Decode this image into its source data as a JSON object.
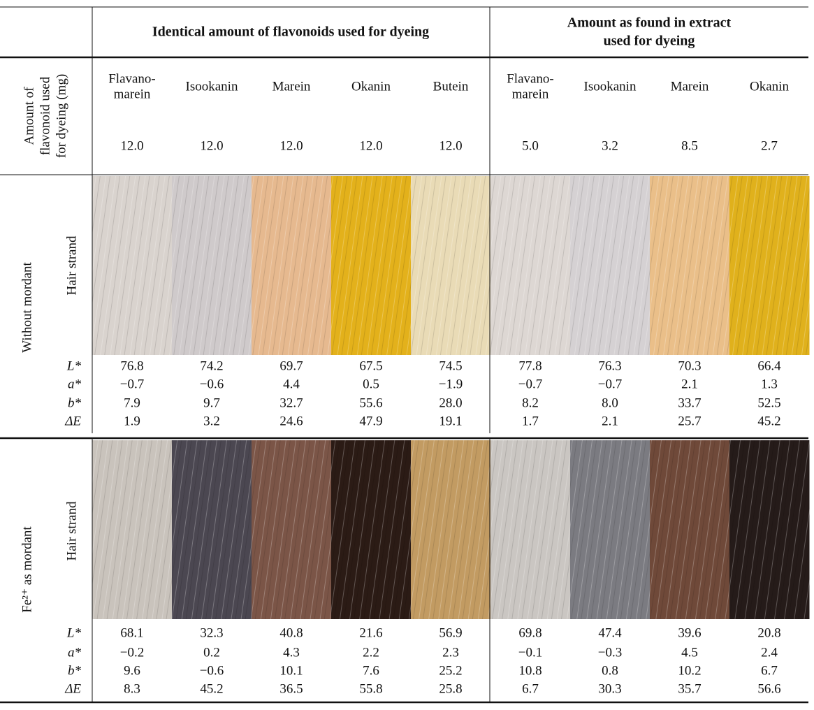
{
  "table": {
    "group_headers": [
      [
        "Identical amount of flavonoids used for dyeing"
      ],
      [
        "Amount as found in extract",
        "used for dyeing"
      ]
    ],
    "compounds": [
      [
        "Flavano-",
        "marein"
      ],
      [
        "Isookanin"
      ],
      [
        "Marein"
      ],
      [
        "Okanin"
      ],
      [
        "Butein"
      ],
      [
        "Flavano-",
        "marein"
      ],
      [
        "Isookanin"
      ],
      [
        "Marein"
      ],
      [
        "Okanin"
      ]
    ],
    "amount_label": [
      "Amount of",
      "flavonoid used",
      "for dyeing (mg)"
    ],
    "amounts": [
      "12.0",
      "12.0",
      "12.0",
      "12.0",
      "12.0",
      "5.0",
      "3.2",
      "8.5",
      "2.7"
    ],
    "sections": [
      {
        "label": "Without mordant",
        "strand_label": "Hair strand",
        "rows": [
          {
            "label": "L*",
            "values": [
              "76.8",
              "74.2",
              "69.7",
              "67.5",
              "74.5",
              "77.8",
              "76.3",
              "70.3",
              "66.4"
            ]
          },
          {
            "label": "a*",
            "values": [
              "−0.7",
              "−0.6",
              "4.4",
              "0.5",
              "−1.9",
              "−0.7",
              "−0.7",
              "2.1",
              "1.3"
            ]
          },
          {
            "label": "b*",
            "values": [
              "7.9",
              "9.7",
              "32.7",
              "55.6",
              "28.0",
              "8.2",
              "8.0",
              "33.7",
              "52.5"
            ]
          },
          {
            "label": "ΔE",
            "values": [
              "1.9",
              "3.2",
              "24.6",
              "47.9",
              "19.1",
              "1.7",
              "2.1",
              "25.7",
              "45.2"
            ]
          }
        ]
      },
      {
        "label": "Fe²⁺ as mordant",
        "strand_label": "Hair strand",
        "rows": [
          {
            "label": "L*",
            "values": [
              "68.1",
              "32.3",
              "40.8",
              "21.6",
              "56.9",
              "69.8",
              "47.4",
              "39.6",
              "20.8"
            ]
          },
          {
            "label": "a*",
            "values": [
              "−0.2",
              "0.2",
              "4.3",
              "2.2",
              "2.3",
              "−0.1",
              "−0.3",
              "4.5",
              "2.4"
            ]
          },
          {
            "label": "b*",
            "values": [
              "9.6",
              "−0.6",
              "10.1",
              "7.6",
              "25.2",
              "10.8",
              "0.8",
              "10.2",
              "6.7"
            ]
          },
          {
            "label": "ΔE",
            "values": [
              "8.3",
              "45.2",
              "36.5",
              "55.8",
              "25.8",
              "6.7",
              "30.3",
              "35.7",
              "56.6"
            ]
          }
        ]
      }
    ]
  }
}
